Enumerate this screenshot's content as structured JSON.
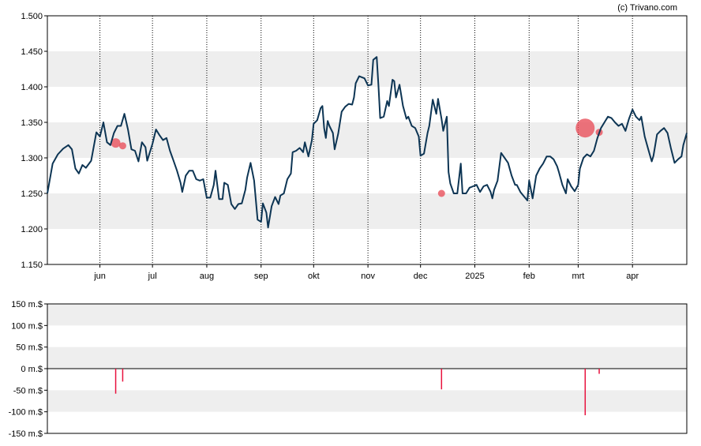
{
  "credit": "(c) Trivano.com",
  "chart_data": [
    {
      "type": "line",
      "ylim": [
        1.15,
        1.5
      ],
      "y_ticks": [
        "1.500",
        "1.450",
        "1.400",
        "1.350",
        "1.300",
        "1.250",
        "1.200",
        "1.150"
      ],
      "y_tick_values": [
        1.5,
        1.45,
        1.4,
        1.35,
        1.3,
        1.25,
        1.2,
        1.15
      ],
      "x_ticks": [
        "jun",
        "jul",
        "aug",
        "sep",
        "okt",
        "nov",
        "dec",
        "2025",
        "feb",
        "mrt",
        "apr"
      ],
      "x_tick_dates": [
        "2024-06-01",
        "2024-07-01",
        "2024-08-01",
        "2024-09-01",
        "2024-10-01",
        "2024-11-01",
        "2024-12-01",
        "2025-01-01",
        "2025-02-01",
        "2025-03-01",
        "2025-04-01"
      ],
      "x_range": [
        "2024-05-02",
        "2025-05-02"
      ],
      "grid": "vertical dotted lines at month ticks; alternating shaded horizontal bands",
      "colors": {
        "line": "#0d3554",
        "band": "#eeeeee",
        "marker": "#e8505b"
      },
      "series": [
        {
          "values": [
            [
              "2024-05-02",
              1.25
            ],
            [
              "2024-05-05",
              1.292
            ],
            [
              "2024-05-08",
              1.305
            ],
            [
              "2024-05-11",
              1.313
            ],
            [
              "2024-05-14",
              1.318
            ],
            [
              "2024-05-16",
              1.312
            ],
            [
              "2024-05-18",
              1.285
            ],
            [
              "2024-05-20",
              1.278
            ],
            [
              "2024-05-22",
              1.29
            ],
            [
              "2024-05-24",
              1.286
            ],
            [
              "2024-05-27",
              1.296
            ],
            [
              "2024-05-30",
              1.336
            ],
            [
              "2024-06-01",
              1.33
            ],
            [
              "2024-06-03",
              1.35
            ],
            [
              "2024-06-05",
              1.322
            ],
            [
              "2024-06-07",
              1.318
            ],
            [
              "2024-06-09",
              1.335
            ],
            [
              "2024-06-11",
              1.345
            ],
            [
              "2024-06-13",
              1.345
            ],
            [
              "2024-06-15",
              1.362
            ],
            [
              "2024-06-17",
              1.34
            ],
            [
              "2024-06-19",
              1.312
            ],
            [
              "2024-06-21",
              1.31
            ],
            [
              "2024-06-23",
              1.295
            ],
            [
              "2024-06-25",
              1.322
            ],
            [
              "2024-06-27",
              1.315
            ],
            [
              "2024-06-28",
              1.296
            ],
            [
              "2024-07-01",
              1.32
            ],
            [
              "2024-07-03",
              1.34
            ],
            [
              "2024-07-05",
              1.332
            ],
            [
              "2024-07-07",
              1.325
            ],
            [
              "2024-07-09",
              1.328
            ],
            [
              "2024-07-11",
              1.31
            ],
            [
              "2024-07-13",
              1.296
            ],
            [
              "2024-07-15",
              1.282
            ],
            [
              "2024-07-17",
              1.265
            ],
            [
              "2024-07-18",
              1.252
            ],
            [
              "2024-07-20",
              1.275
            ],
            [
              "2024-07-22",
              1.282
            ],
            [
              "2024-07-24",
              1.282
            ],
            [
              "2024-07-26",
              1.27
            ],
            [
              "2024-07-28",
              1.268
            ],
            [
              "2024-07-30",
              1.27
            ],
            [
              "2024-08-01",
              1.244
            ],
            [
              "2024-08-03",
              1.244
            ],
            [
              "2024-08-05",
              1.262
            ],
            [
              "2024-08-06",
              1.282
            ],
            [
              "2024-08-08",
              1.242
            ],
            [
              "2024-08-10",
              1.242
            ],
            [
              "2024-08-11",
              1.265
            ],
            [
              "2024-08-13",
              1.262
            ],
            [
              "2024-08-15",
              1.235
            ],
            [
              "2024-08-17",
              1.228
            ],
            [
              "2024-08-19",
              1.235
            ],
            [
              "2024-08-21",
              1.236
            ],
            [
              "2024-08-23",
              1.255
            ],
            [
              "2024-08-24",
              1.272
            ],
            [
              "2024-08-26",
              1.293
            ],
            [
              "2024-08-28",
              1.268
            ],
            [
              "2024-08-30",
              1.213
            ],
            [
              "2024-09-01",
              1.21
            ],
            [
              "2024-09-02",
              1.236
            ],
            [
              "2024-09-04",
              1.223
            ],
            [
              "2024-09-05",
              1.202
            ],
            [
              "2024-09-07",
              1.232
            ],
            [
              "2024-09-09",
              1.245
            ],
            [
              "2024-09-11",
              1.235
            ],
            [
              "2024-09-12",
              1.247
            ],
            [
              "2024-09-14",
              1.25
            ],
            [
              "2024-09-16",
              1.27
            ],
            [
              "2024-09-18",
              1.278
            ],
            [
              "2024-09-19",
              1.308
            ],
            [
              "2024-09-21",
              1.31
            ],
            [
              "2024-09-23",
              1.314
            ],
            [
              "2024-09-25",
              1.308
            ],
            [
              "2024-09-26",
              1.322
            ],
            [
              "2024-09-28",
              1.302
            ],
            [
              "2024-09-30",
              1.325
            ],
            [
              "2024-10-01",
              1.348
            ],
            [
              "2024-10-03",
              1.353
            ],
            [
              "2024-10-05",
              1.37
            ],
            [
              "2024-10-06",
              1.373
            ],
            [
              "2024-10-07",
              1.342
            ],
            [
              "2024-10-08",
              1.328
            ],
            [
              "2024-10-09",
              1.352
            ],
            [
              "2024-10-10",
              1.345
            ],
            [
              "2024-10-12",
              1.335
            ],
            [
              "2024-10-13",
              1.312
            ],
            [
              "2024-10-15",
              1.334
            ],
            [
              "2024-10-17",
              1.365
            ],
            [
              "2024-10-19",
              1.372
            ],
            [
              "2024-10-21",
              1.376
            ],
            [
              "2024-10-23",
              1.375
            ],
            [
              "2024-10-24",
              1.385
            ],
            [
              "2024-10-25",
              1.405
            ],
            [
              "2024-10-27",
              1.415
            ],
            [
              "2024-10-28",
              1.414
            ],
            [
              "2024-10-30",
              1.412
            ],
            [
              "2024-11-01",
              1.402
            ],
            [
              "2024-11-03",
              1.403
            ],
            [
              "2024-11-04",
              1.438
            ],
            [
              "2024-11-06",
              1.442
            ],
            [
              "2024-11-07",
              1.402
            ],
            [
              "2024-11-08",
              1.356
            ],
            [
              "2024-11-10",
              1.358
            ],
            [
              "2024-11-12",
              1.38
            ],
            [
              "2024-11-13",
              1.373
            ],
            [
              "2024-11-15",
              1.41
            ],
            [
              "2024-11-16",
              1.408
            ],
            [
              "2024-11-17",
              1.385
            ],
            [
              "2024-11-19",
              1.403
            ],
            [
              "2024-11-21",
              1.373
            ],
            [
              "2024-11-23",
              1.355
            ],
            [
              "2024-11-24",
              1.358
            ],
            [
              "2024-11-26",
              1.345
            ],
            [
              "2024-11-28",
              1.342
            ],
            [
              "2024-11-30",
              1.33
            ],
            [
              "2024-12-01",
              1.303
            ],
            [
              "2024-12-03",
              1.306
            ],
            [
              "2024-12-05",
              1.335
            ],
            [
              "2024-12-06",
              1.345
            ],
            [
              "2024-12-08",
              1.382
            ],
            [
              "2024-12-10",
              1.362
            ],
            [
              "2024-12-11",
              1.383
            ],
            [
              "2024-12-13",
              1.355
            ],
            [
              "2024-12-14",
              1.338
            ],
            [
              "2024-12-16",
              1.358
            ],
            [
              "2024-12-17",
              1.28
            ],
            [
              "2024-12-18",
              1.264
            ],
            [
              "2024-12-20",
              1.25
            ],
            [
              "2024-12-22",
              1.25
            ],
            [
              "2024-12-24",
              1.292
            ],
            [
              "2024-12-25",
              1.25
            ],
            [
              "2024-12-27",
              1.25
            ],
            [
              "2024-12-29",
              1.258
            ],
            [
              "2024-12-31",
              1.26
            ],
            [
              "2025-01-02",
              1.262
            ],
            [
              "2025-01-04",
              1.252
            ],
            [
              "2025-01-06",
              1.26
            ],
            [
              "2025-01-08",
              1.262
            ],
            [
              "2025-01-10",
              1.252
            ],
            [
              "2025-01-11",
              1.243
            ],
            [
              "2025-01-12",
              1.255
            ],
            [
              "2025-01-14",
              1.268
            ],
            [
              "2025-01-16",
              1.307
            ],
            [
              "2025-01-18",
              1.3
            ],
            [
              "2025-01-20",
              1.293
            ],
            [
              "2025-01-22",
              1.275
            ],
            [
              "2025-01-24",
              1.262
            ],
            [
              "2025-01-25",
              1.262
            ],
            [
              "2025-01-27",
              1.252
            ],
            [
              "2025-01-29",
              1.246
            ],
            [
              "2025-01-31",
              1.24
            ],
            [
              "2025-02-01",
              1.268
            ],
            [
              "2025-02-03",
              1.243
            ],
            [
              "2025-02-05",
              1.275
            ],
            [
              "2025-02-07",
              1.285
            ],
            [
              "2025-02-09",
              1.292
            ],
            [
              "2025-02-11",
              1.302
            ],
            [
              "2025-02-13",
              1.302
            ],
            [
              "2025-02-15",
              1.298
            ],
            [
              "2025-02-17",
              1.288
            ],
            [
              "2025-02-18",
              1.28
            ],
            [
              "2025-02-20",
              1.262
            ],
            [
              "2025-02-22",
              1.25
            ],
            [
              "2025-02-23",
              1.27
            ],
            [
              "2025-02-25",
              1.26
            ],
            [
              "2025-02-27",
              1.253
            ],
            [
              "2025-03-01",
              1.262
            ],
            [
              "2025-03-02",
              1.285
            ],
            [
              "2025-03-04",
              1.3
            ],
            [
              "2025-03-06",
              1.305
            ],
            [
              "2025-03-08",
              1.302
            ],
            [
              "2025-03-10",
              1.31
            ],
            [
              "2025-03-12",
              1.328
            ],
            [
              "2025-03-14",
              1.342
            ],
            [
              "2025-03-16",
              1.35
            ],
            [
              "2025-03-18",
              1.358
            ],
            [
              "2025-03-20",
              1.356
            ],
            [
              "2025-03-22",
              1.35
            ],
            [
              "2025-03-24",
              1.345
            ],
            [
              "2025-03-26",
              1.348
            ],
            [
              "2025-03-28",
              1.338
            ],
            [
              "2025-03-30",
              1.355
            ],
            [
              "2025-04-01",
              1.368
            ],
            [
              "2025-04-03",
              1.358
            ],
            [
              "2025-04-05",
              1.353
            ],
            [
              "2025-04-06",
              1.358
            ],
            [
              "2025-04-08",
              1.33
            ],
            [
              "2025-04-10",
              1.312
            ],
            [
              "2025-04-12",
              1.295
            ],
            [
              "2025-04-13",
              1.303
            ],
            [
              "2025-04-15",
              1.333
            ],
            [
              "2025-04-17",
              1.338
            ],
            [
              "2025-04-19",
              1.342
            ],
            [
              "2025-04-21",
              1.335
            ],
            [
              "2025-04-23",
              1.313
            ],
            [
              "2025-04-25",
              1.293
            ],
            [
              "2025-04-27",
              1.298
            ],
            [
              "2025-04-29",
              1.302
            ],
            [
              "2025-04-30",
              1.318
            ],
            [
              "2025-05-02",
              1.335
            ]
          ],
          "color": "#0d3554"
        }
      ]
    },
    {
      "type": "bar",
      "ylim": [
        -150,
        150
      ],
      "y_ticks": [
        "150 m.$",
        "100 m.$",
        "50 m.$",
        "0 m.$",
        "-50 m.$",
        "-100 m.$",
        "-150 m.$"
      ],
      "y_tick_values": [
        150,
        100,
        50,
        0,
        -50,
        -100,
        -150
      ],
      "grid": "alternating shaded horizontal bands; black zero line",
      "colors": {
        "bar": "#e8113d"
      },
      "values": [
        {
          "date": "2024-06-10",
          "value": -58
        },
        {
          "date": "2024-06-14",
          "value": -30
        },
        {
          "date": "2024-12-13",
          "value": -48
        },
        {
          "date": "2025-03-05",
          "value": -108
        },
        {
          "date": "2025-03-13",
          "value": -12
        }
      ]
    }
  ],
  "markers": [
    {
      "date": "2024-06-10",
      "value": 1.321,
      "size": "small"
    },
    {
      "date": "2024-06-14",
      "value": 1.317,
      "size": "tiny"
    },
    {
      "date": "2024-12-13",
      "value": 1.25,
      "size": "tiny"
    },
    {
      "date": "2025-03-05",
      "value": 1.342,
      "size": "large"
    },
    {
      "date": "2025-03-13",
      "value": 1.336,
      "size": "tiny"
    }
  ]
}
